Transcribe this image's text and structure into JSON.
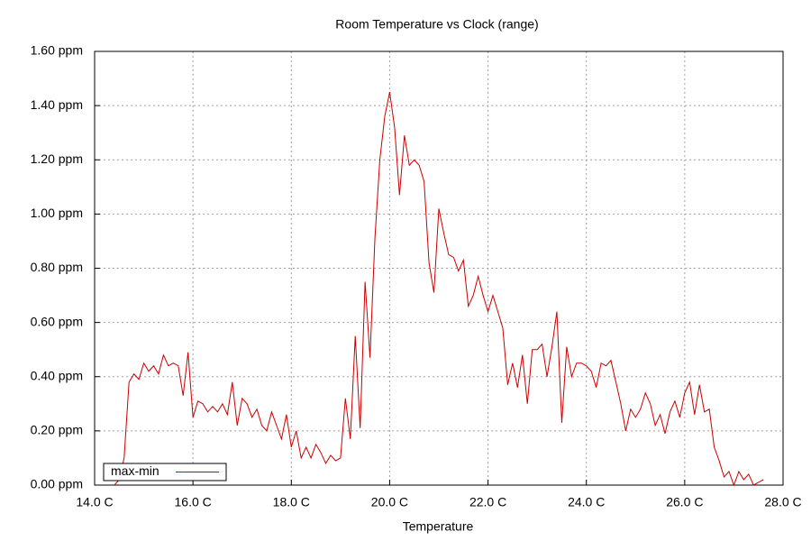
{
  "chart_data": {
    "type": "line",
    "title": "Room Temperature vs Clock (range)",
    "x_label": "Temperature",
    "x": [
      14.4,
      14.5,
      14.6,
      14.7,
      14.8,
      14.9,
      15.0,
      15.1,
      15.2,
      15.3,
      15.4,
      15.5,
      15.6,
      15.7,
      15.8,
      15.9,
      16.0,
      16.1,
      16.2,
      16.3,
      16.4,
      16.5,
      16.6,
      16.7,
      16.8,
      16.9,
      17.0,
      17.1,
      17.2,
      17.3,
      17.4,
      17.5,
      17.6,
      17.7,
      17.8,
      17.9,
      18.0,
      18.1,
      18.2,
      18.3,
      18.4,
      18.5,
      18.6,
      18.7,
      18.8,
      18.9,
      19.0,
      19.1,
      19.2,
      19.3,
      19.4,
      19.5,
      19.6,
      19.7,
      19.8,
      19.9,
      20.0,
      20.1,
      20.2,
      20.3,
      20.4,
      20.5,
      20.6,
      20.7,
      20.8,
      20.9,
      21.0,
      21.1,
      21.2,
      21.3,
      21.4,
      21.5,
      21.6,
      21.7,
      21.8,
      21.9,
      22.0,
      22.1,
      22.2,
      22.3,
      22.4,
      22.5,
      22.6,
      22.7,
      22.8,
      22.9,
      23.0,
      23.1,
      23.2,
      23.3,
      23.4,
      23.5,
      23.6,
      23.7,
      23.8,
      23.9,
      24.0,
      24.1,
      24.2,
      24.3,
      24.4,
      24.5,
      24.6,
      24.7,
      24.8,
      24.9,
      25.0,
      25.1,
      25.2,
      25.3,
      25.4,
      25.5,
      25.6,
      25.7,
      25.8,
      25.9,
      26.0,
      26.1,
      26.2,
      26.3,
      26.4,
      26.5,
      26.6,
      26.7,
      26.8,
      26.9,
      27.0,
      27.1,
      27.2,
      27.3,
      27.4,
      27.5,
      27.6
    ],
    "series": [
      {
        "name": "max-min",
        "color": "#cc0000",
        "values": [
          0.0,
          0.02,
          0.1,
          0.38,
          0.41,
          0.39,
          0.45,
          0.42,
          0.44,
          0.41,
          0.48,
          0.44,
          0.45,
          0.44,
          0.33,
          0.49,
          0.25,
          0.31,
          0.3,
          0.27,
          0.29,
          0.27,
          0.3,
          0.26,
          0.38,
          0.22,
          0.32,
          0.3,
          0.25,
          0.28,
          0.22,
          0.2,
          0.27,
          0.22,
          0.17,
          0.26,
          0.14,
          0.2,
          0.1,
          0.14,
          0.1,
          0.15,
          0.12,
          0.08,
          0.11,
          0.09,
          0.1,
          0.32,
          0.17,
          0.55,
          0.21,
          0.75,
          0.47,
          0.91,
          1.2,
          1.36,
          1.45,
          1.32,
          1.07,
          1.29,
          1.18,
          1.2,
          1.18,
          1.12,
          0.82,
          0.71,
          1.02,
          0.93,
          0.85,
          0.84,
          0.79,
          0.83,
          0.66,
          0.7,
          0.77,
          0.7,
          0.64,
          0.7,
          0.64,
          0.58,
          0.37,
          0.45,
          0.36,
          0.48,
          0.3,
          0.5,
          0.5,
          0.52,
          0.4,
          0.51,
          0.64,
          0.23,
          0.51,
          0.4,
          0.45,
          0.45,
          0.44,
          0.42,
          0.36,
          0.45,
          0.44,
          0.46,
          0.38,
          0.3,
          0.2,
          0.28,
          0.25,
          0.28,
          0.34,
          0.3,
          0.22,
          0.26,
          0.19,
          0.27,
          0.31,
          0.25,
          0.34,
          0.38,
          0.26,
          0.37,
          0.27,
          0.28,
          0.14,
          0.09,
          0.03,
          0.05,
          0.0,
          0.05,
          0.02,
          0.04,
          0.0,
          0.01,
          0.02
        ]
      }
    ],
    "xlim": [
      14,
      28
    ],
    "xticks": [
      {
        "value": 14,
        "label": "14.0 C"
      },
      {
        "value": 16,
        "label": "16.0 C"
      },
      {
        "value": 18,
        "label": "18.0 C"
      },
      {
        "value": 20,
        "label": "20.0 C"
      },
      {
        "value": 22,
        "label": "22.0 C"
      },
      {
        "value": 24,
        "label": "24.0 C"
      },
      {
        "value": 26,
        "label": "26.0 C"
      },
      {
        "value": 28,
        "label": "28.0 C"
      }
    ],
    "ylim": [
      0,
      1.6
    ],
    "yticks": [
      {
        "value": 0,
        "label": "0.00 ppm"
      },
      {
        "value": 0.2,
        "label": "0.20 ppm"
      },
      {
        "value": 0.4,
        "label": "0.40 ppm"
      },
      {
        "value": 0.6,
        "label": "0.60 ppm"
      },
      {
        "value": 0.8,
        "label": "0.80 ppm"
      },
      {
        "value": 1.0,
        "label": "1.00 ppm"
      },
      {
        "value": 1.2,
        "label": "1.20 ppm"
      },
      {
        "value": 1.4,
        "label": "1.40 ppm"
      },
      {
        "value": 1.6,
        "label": "1.60 ppm"
      }
    ],
    "grid": true,
    "legend_position": "bottom-left"
  }
}
